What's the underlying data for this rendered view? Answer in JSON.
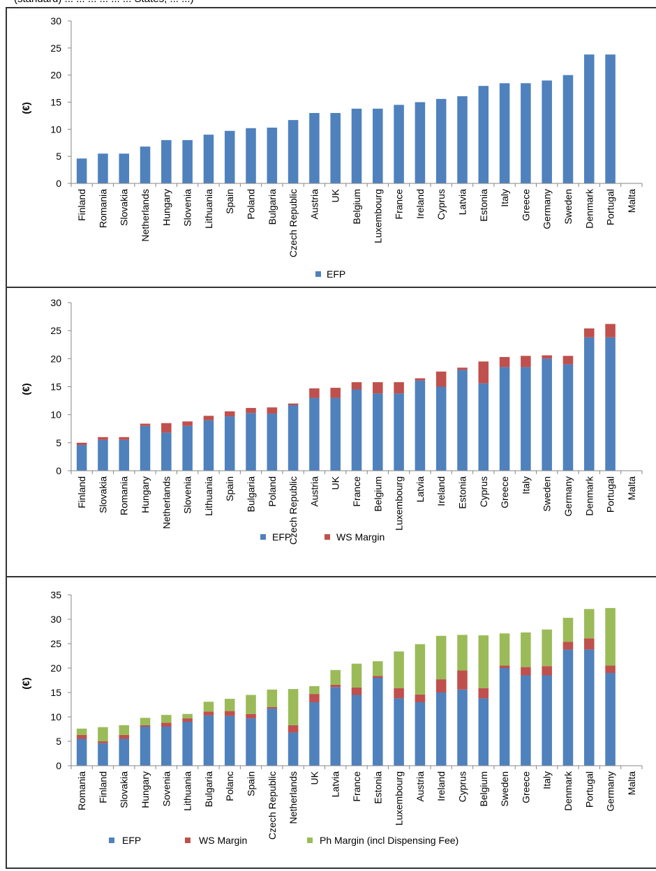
{
  "header": {
    "text": "(standard) ... ... ... ... ... ... States, ... ...)"
  },
  "colors": {
    "efp": "#4f81bd",
    "ws": "#c0504d",
    "ph": "#9bbb59",
    "axis": "#868686"
  },
  "chart_data": [
    {
      "type": "bar",
      "ylabel": "(€)",
      "ylim": [
        0,
        30
      ],
      "yticks": [
        "0",
        "5",
        "10",
        "15",
        "20",
        "25",
        "30"
      ],
      "categories": [
        "Finland",
        "Romania",
        "Slovakia",
        "Netherlands",
        "Hungary",
        "Slovenia",
        "Lithuania",
        "Spain",
        "Poland",
        "Bulgaria",
        "Czech Republic",
        "Austria",
        "UK",
        "Belgium",
        "Luxembourg",
        "France",
        "Ireland",
        "Cyprus",
        "Latvia",
        "Estonia",
        "Italy",
        "Greece",
        "Germany",
        "Sweden",
        "Denmark",
        "Portugal",
        "Malta"
      ],
      "series": [
        {
          "name": "EFP",
          "values": [
            4.6,
            5.5,
            5.5,
            6.8,
            8.0,
            8.0,
            9.0,
            9.7,
            10.2,
            10.3,
            11.7,
            13.0,
            13.0,
            13.8,
            13.8,
            14.5,
            15.0,
            15.6,
            16.1,
            18.0,
            18.5,
            18.5,
            19.0,
            20.0,
            23.8,
            23.8,
            0
          ]
        }
      ],
      "legend": "bottom"
    },
    {
      "type": "bar",
      "stacked": true,
      "ylabel": "(€)",
      "ylim": [
        0,
        30
      ],
      "yticks": [
        "0",
        "5",
        "10",
        "15",
        "20",
        "25",
        "30"
      ],
      "categories": [
        "Finland",
        "Slovakia",
        "Romania",
        "Hungary",
        "Netherlands",
        "Slovenia",
        "Lithuania",
        "Spain",
        "Bulgaria",
        "Poland",
        "Czech Republic",
        "Austria",
        "UK",
        "France",
        "Belgium",
        "Luxembourg",
        "Latvia",
        "Ireland",
        "Estonia",
        "Cyprus",
        "Greece",
        "Italy",
        "Sweden",
        "Germany",
        "Denmark",
        "Portugal",
        "Malta"
      ],
      "series": [
        {
          "name": "EFP",
          "values": [
            4.6,
            5.5,
            5.5,
            8.0,
            6.8,
            8.0,
            9.0,
            9.7,
            10.3,
            10.2,
            11.7,
            13.0,
            13.0,
            14.5,
            13.8,
            13.8,
            16.1,
            15.0,
            18.0,
            15.6,
            18.5,
            18.5,
            20.0,
            19.0,
            23.8,
            23.8,
            0
          ]
        },
        {
          "name": "WS Margin",
          "values": [
            0.4,
            0.5,
            0.5,
            0.4,
            1.7,
            0.8,
            0.8,
            0.9,
            0.9,
            1.1,
            0.3,
            1.7,
            1.8,
            1.3,
            2.0,
            2.0,
            0.4,
            2.7,
            0.4,
            3.9,
            1.8,
            2.0,
            0.6,
            1.5,
            1.6,
            2.4,
            0
          ]
        }
      ],
      "legend": "bottom"
    },
    {
      "type": "bar",
      "stacked": true,
      "ylabel": "(€)",
      "ylim": [
        0,
        35
      ],
      "yticks": [
        "0",
        "5",
        "10",
        "15",
        "20",
        "25",
        "30",
        "35"
      ],
      "categories": [
        "Romania",
        "Finland",
        "Slovakia",
        "Hungary",
        "Sovenia",
        "Lithuania",
        "Bulgaria",
        "Polanc",
        "Spain",
        "Czech Republic",
        "Netherlands",
        "UK",
        "Latvia",
        "France",
        "Estonia",
        "Luxembourg",
        "Austria",
        "Ireland",
        "Cyprus",
        "Belgium",
        "Sweden",
        "Greece",
        "Italy",
        "Denmark",
        "Portugal",
        "Germany",
        "Malta"
      ],
      "series": [
        {
          "name": "EFP",
          "values": [
            5.5,
            4.6,
            5.5,
            8.0,
            8.0,
            9.0,
            10.3,
            10.2,
            9.7,
            11.7,
            6.8,
            13.0,
            16.1,
            14.5,
            18.0,
            13.8,
            13.0,
            15.0,
            15.6,
            13.8,
            20.0,
            18.5,
            18.5,
            23.8,
            23.8,
            19.0,
            0
          ]
        },
        {
          "name": "WS Margin",
          "values": [
            0.8,
            0.4,
            0.8,
            0.3,
            0.8,
            0.7,
            0.8,
            1.0,
            0.9,
            0.3,
            1.5,
            1.7,
            0.5,
            1.5,
            0.4,
            2.1,
            1.6,
            2.7,
            3.9,
            2.1,
            0.5,
            1.7,
            1.9,
            1.6,
            2.3,
            1.5,
            0
          ]
        },
        {
          "name": "Ph Margin (incl Dispensing Fee)",
          "values": [
            1.3,
            2.9,
            2.0,
            1.5,
            1.6,
            0.9,
            2.0,
            2.5,
            3.9,
            3.6,
            7.4,
            1.6,
            3.0,
            4.9,
            3.0,
            7.5,
            10.3,
            8.9,
            7.3,
            10.8,
            6.6,
            7.1,
            7.5,
            4.9,
            6.0,
            11.8,
            0
          ]
        }
      ],
      "legend": "bottom"
    }
  ]
}
